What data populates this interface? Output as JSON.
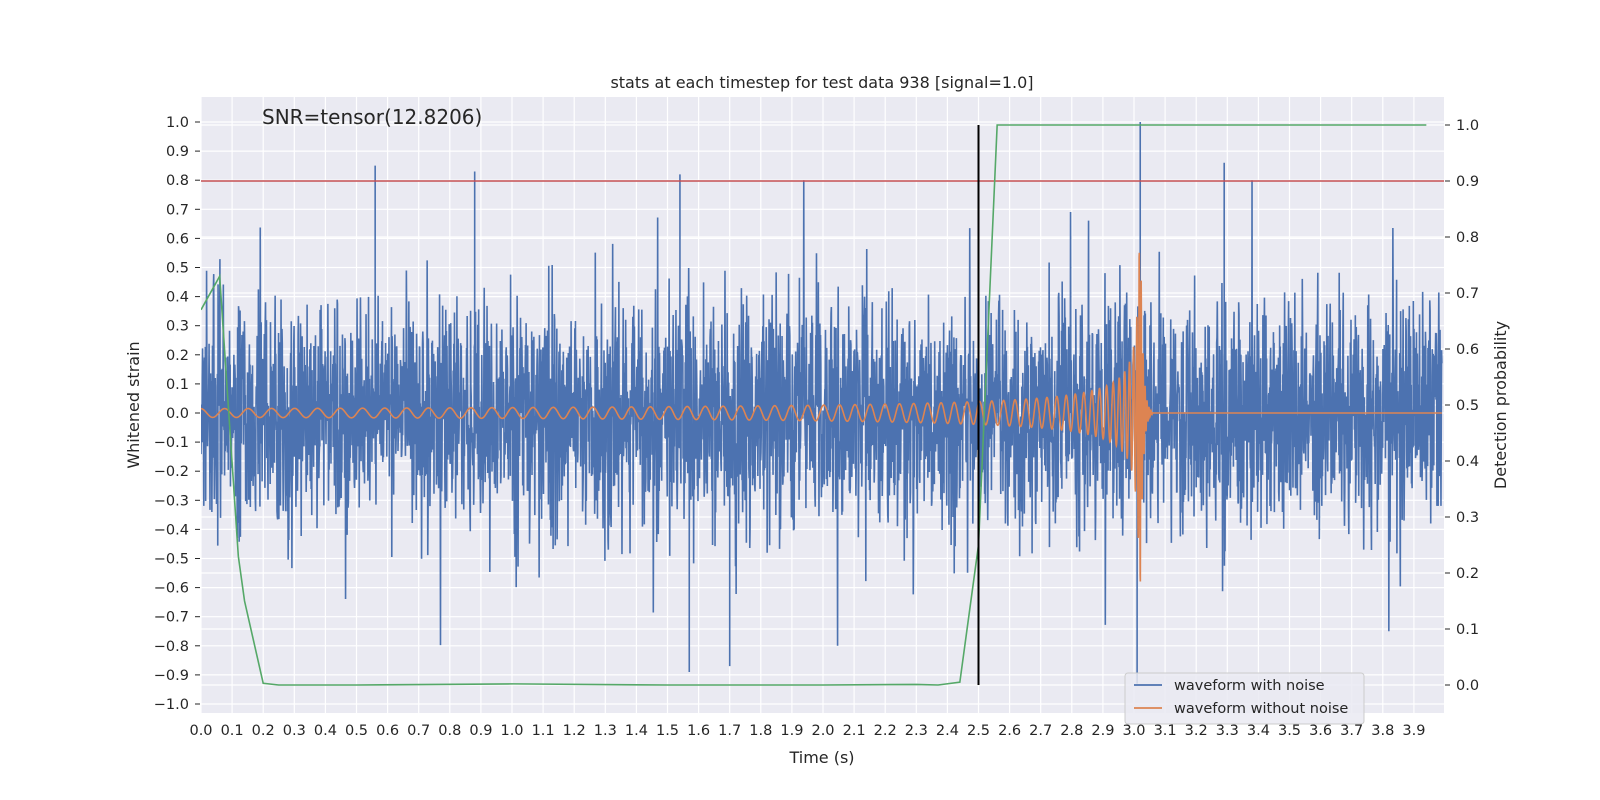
{
  "chart_data": {
    "type": "line",
    "title": "stats at each timestep for test data 938 [signal=1.0]",
    "xlabel": "Time (s)",
    "ylabel": "Whitened strain",
    "y2label": "Detection probability",
    "annotation": "SNR=tensor(12.8206)",
    "xlim": [
      0,
      4
    ],
    "ylim": [
      -1.05,
      1.1
    ],
    "y2lim": [
      -0.05,
      1.05
    ],
    "xticks": [
      "0.0",
      "0.1",
      "0.2",
      "0.3",
      "0.4",
      "0.5",
      "0.6",
      "0.7",
      "0.8",
      "0.9",
      "1.0",
      "1.1",
      "1.2",
      "1.3",
      "1.4",
      "1.5",
      "1.6",
      "1.7",
      "1.8",
      "1.9",
      "2.0",
      "2.1",
      "2.2",
      "2.3",
      "2.4",
      "2.5",
      "2.6",
      "2.7",
      "2.8",
      "2.9",
      "3.0",
      "3.1",
      "3.2",
      "3.3",
      "3.4",
      "3.5",
      "3.6",
      "3.7",
      "3.8",
      "3.9"
    ],
    "yticks": [
      "1.0",
      "0.9",
      "0.8",
      "0.7",
      "0.6",
      "0.5",
      "0.4",
      "0.3",
      "0.2",
      "0.1",
      "0.0",
      "−0.1",
      "−0.2",
      "−0.3",
      "−0.4",
      "−0.5",
      "−0.6",
      "−0.7",
      "−0.8",
      "−0.9",
      "−1.0"
    ],
    "y2ticks": [
      "1.0",
      "0.9",
      "0.8",
      "0.7",
      "0.6",
      "0.5",
      "0.4",
      "0.3",
      "0.2",
      "0.1",
      "0.0"
    ],
    "grid": true,
    "legend_position": "bottom-right",
    "legend": [
      "waveform with noise",
      "waveform without noise"
    ],
    "series": [
      {
        "name": "waveform with noise",
        "color": "#4c72b0",
        "kind": "noise",
        "t_start": 0,
        "t_end": 3.99,
        "typical_amplitude": 0.35,
        "min": -1.0,
        "max": 1.0,
        "peaks": [
          [
            0.56,
            0.85
          ],
          [
            0.88,
            0.83
          ],
          [
            1.54,
            0.82
          ],
          [
            3.02,
            1.0
          ],
          [
            3.29,
            0.86
          ],
          [
            1.57,
            -0.89
          ],
          [
            1.7,
            -0.87
          ],
          [
            3.01,
            -0.93
          ]
        ]
      },
      {
        "name": "waveform without noise",
        "color": "#dd8452",
        "kind": "chirp",
        "t_start": 0,
        "t_end": 3.99,
        "merger_time": 3.02,
        "amp_start": 0.015,
        "amp_peak": 0.67,
        "freq_start": 13,
        "freq_peak": 160
      }
    ],
    "prob_series": {
      "color": "#55a868",
      "axis": "right",
      "x": [
        0.0,
        0.06,
        0.12,
        0.14,
        0.2,
        0.25,
        0.5,
        1.0,
        1.5,
        2.0,
        2.3,
        2.37,
        2.44,
        2.5,
        2.56,
        3.0,
        3.94
      ],
      "y": [
        0.67,
        0.73,
        0.23,
        0.15,
        0.003,
        0.0,
        0.0,
        0.002,
        0.0,
        0.0,
        0.001,
        0.0,
        0.005,
        0.25,
        1.0,
        1.0,
        1.0
      ]
    },
    "threshold": {
      "y2": 0.9,
      "color": "#c44e52"
    },
    "vline": {
      "x": 2.5,
      "y2_from": 0.0,
      "y2_to": 1.0,
      "color": "#000000"
    }
  }
}
